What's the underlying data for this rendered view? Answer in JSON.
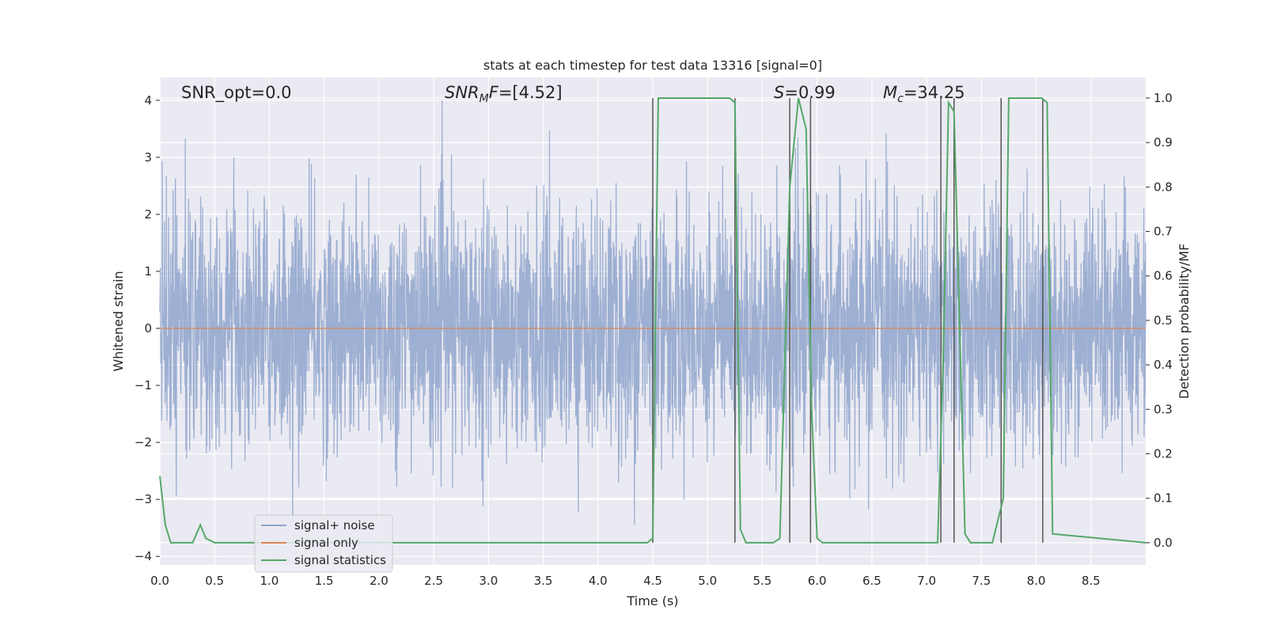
{
  "chart_data": {
    "type": "line",
    "title": "stats at each timestep for test data 13316 [signal=0]",
    "xlabel": "Time (s)",
    "ylabel": "Whitened strain",
    "y2label": "Detection probability/MF",
    "xlim": [
      0.0,
      9.0
    ],
    "ylim": [
      -4.15,
      4.4
    ],
    "y2lim": [
      -0.05,
      1.0462
    ],
    "xticks": [
      "0.0",
      "0.5",
      "1.0",
      "1.5",
      "2.0",
      "2.5",
      "3.0",
      "3.5",
      "4.0",
      "4.5",
      "5.0",
      "5.5",
      "6.0",
      "6.5",
      "7.0",
      "7.5",
      "8.0",
      "8.5"
    ],
    "yticks": [
      "4",
      "3",
      "2",
      "1",
      "0",
      "−1",
      "−2",
      "−3",
      "−4"
    ],
    "y2ticks": [
      "1.0",
      "0.9",
      "0.8",
      "0.7",
      "0.6",
      "0.5",
      "0.4",
      "0.3",
      "0.2",
      "0.1",
      "0.0"
    ],
    "grid": true,
    "legend_position": "lower-left",
    "annotations": {
      "snr_opt": "SNR_opt=0.0",
      "snr_mf_base": "SNR",
      "snr_mf_sub": "M",
      "snr_mf_rest": "F=[4.52]",
      "s_italic": "S",
      "s_rest": "=0.99",
      "mc_base": "M",
      "mc_sub": "c",
      "mc_rest": "=34.25"
    },
    "series": [
      {
        "name": "signal+ noise",
        "color": "#8fa4cc",
        "description_values": "noise, approx mean 0, envelope ±2.5 with spikes to ±4",
        "sample_rate": 400,
        "seed": 13316
      },
      {
        "name": "signal only",
        "color": "#dd8452",
        "constant": 0.0
      },
      {
        "name": "signal statistics",
        "color": "#55a868",
        "axis": "right",
        "x": [
          0.0,
          0.05,
          0.1,
          0.3,
          0.37,
          0.42,
          0.5,
          4.45,
          4.5,
          4.55,
          5.2,
          5.25,
          5.3,
          5.35,
          5.6,
          5.66,
          5.75,
          5.83,
          5.9,
          5.95,
          6.0,
          6.05,
          7.1,
          7.15,
          7.2,
          7.25,
          7.3,
          7.35,
          7.4,
          7.6,
          7.7,
          7.75,
          8.05,
          8.1,
          8.15,
          9.0
        ],
        "y": [
          0.15,
          0.04,
          0.0,
          0.0,
          0.04,
          0.01,
          0.0,
          0.0,
          0.01,
          1.0,
          1.0,
          0.99,
          0.03,
          0.0,
          0.0,
          0.01,
          0.8,
          1.0,
          0.93,
          0.3,
          0.01,
          0.0,
          0.0,
          0.4,
          0.99,
          0.97,
          0.5,
          0.02,
          0.0,
          0.0,
          0.1,
          1.0,
          1.0,
          0.99,
          0.02,
          0.0
        ]
      }
    ],
    "vlines": {
      "color": "#555555",
      "x": [
        4.5,
        5.25,
        5.75,
        5.94,
        7.13,
        7.25,
        7.68,
        8.06
      ],
      "y2_range": [
        0.0,
        1.0
      ]
    }
  },
  "legend": {
    "items": [
      "signal+ noise",
      "signal only",
      "signal statistics"
    ]
  }
}
